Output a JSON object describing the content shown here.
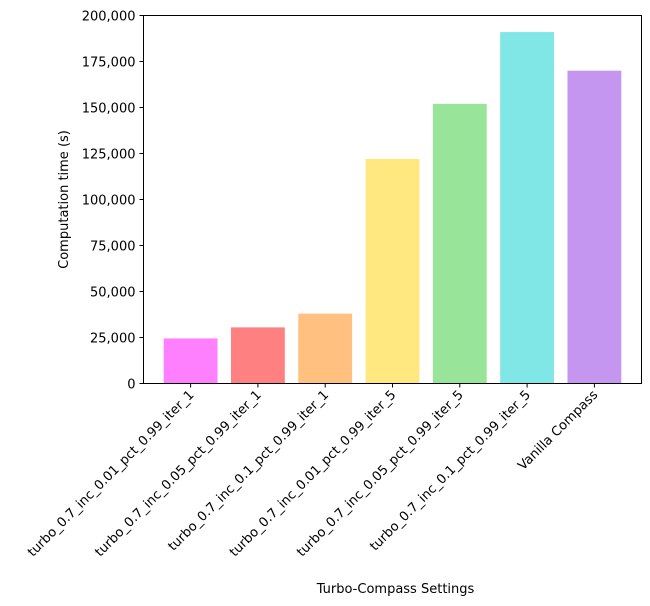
{
  "chart_data": {
    "type": "bar",
    "title": "",
    "xlabel": "Turbo-Compass Settings",
    "ylabel": "Computation time (s)",
    "ylim": [
      0,
      200000
    ],
    "yticks": [
      0,
      25000,
      50000,
      75000,
      100000,
      125000,
      150000,
      175000,
      200000
    ],
    "ytick_labels": [
      "0",
      "25,000",
      "50,000",
      "75,000",
      "100,000",
      "125,000",
      "150,000",
      "175,000",
      "200,000"
    ],
    "categories": [
      "turbo_0.7_inc_0.01_pct_0.99_iter_1",
      "turbo_0.7_inc_0.05_pct_0.99_iter_1",
      "turbo_0.7_inc_0.1_pct_0.99_iter_1",
      "turbo_0.7_inc_0.01_pct_0.99_iter_5",
      "turbo_0.7_inc_0.05_pct_0.99_iter_5",
      "turbo_0.7_inc_0.1_pct_0.99_iter_5",
      "Vanilla Compass"
    ],
    "values": [
      24500,
      30500,
      38000,
      122000,
      152000,
      191000,
      170000
    ],
    "colors": [
      "#ff80ff",
      "#ff8080",
      "#ffc080",
      "#ffe880",
      "#98e498",
      "#80e6e6",
      "#c496ef"
    ],
    "grid": false,
    "legend": "none"
  }
}
